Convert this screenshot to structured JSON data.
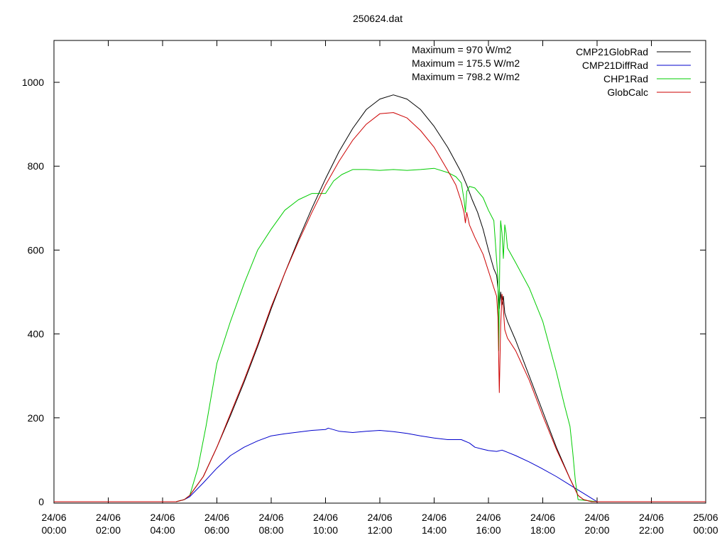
{
  "chart_data": {
    "type": "line",
    "title": "250624.dat",
    "xlabel": "",
    "ylabel": "",
    "xlim": [
      0,
      24
    ],
    "ylim": [
      0,
      1100
    ],
    "grid": false,
    "legend_position": "top-right",
    "x_tick_labels": [
      {
        "value": 0,
        "label": "24/06\n00:00"
      },
      {
        "value": 2,
        "label": "24/06\n02:00"
      },
      {
        "value": 4,
        "label": "24/06\n04:00"
      },
      {
        "value": 6,
        "label": "24/06\n06:00"
      },
      {
        "value": 8,
        "label": "24/06\n08:00"
      },
      {
        "value": 10,
        "label": "24/06\n10:00"
      },
      {
        "value": 12,
        "label": "24/06\n12:00"
      },
      {
        "value": 14,
        "label": "24/06\n14:00"
      },
      {
        "value": 16,
        "label": "24/06\n16:00"
      },
      {
        "value": 18,
        "label": "24/06\n18:00"
      },
      {
        "value": 20,
        "label": "24/06\n20:00"
      },
      {
        "value": 22,
        "label": "24/06\n22:00"
      },
      {
        "value": 24,
        "label": "25/06\n00:00"
      }
    ],
    "y_ticks": [
      0,
      200,
      400,
      600,
      800,
      1000
    ],
    "annotations": [
      "Maximum = 970 W/m2",
      "Maximum = 175.5 W/m2",
      "Maximum = 798.2 W/m2"
    ],
    "series": [
      {
        "name": "CMP21GlobRad",
        "color": "#000000",
        "x": [
          0,
          4.5,
          4.8,
          5.0,
          5.5,
          6.0,
          6.5,
          7.0,
          7.5,
          8.0,
          8.5,
          9.0,
          9.5,
          10.0,
          10.5,
          11.0,
          11.5,
          12.0,
          12.5,
          13.0,
          13.5,
          14.0,
          14.5,
          15.0,
          15.2,
          15.4,
          15.6,
          15.8,
          16.0,
          16.2,
          16.3,
          16.35,
          16.4,
          16.45,
          16.5,
          16.55,
          16.6,
          16.7,
          17.0,
          17.5,
          18.0,
          18.5,
          19.0,
          19.3,
          19.5,
          19.8,
          20.0,
          24
        ],
        "y": [
          0,
          0,
          5,
          15,
          60,
          130,
          205,
          285,
          370,
          460,
          545,
          625,
          700,
          770,
          835,
          890,
          935,
          960,
          970,
          960,
          935,
          895,
          845,
          785,
          755,
          720,
          690,
          650,
          600,
          555,
          540,
          510,
          460,
          500,
          470,
          490,
          450,
          430,
          385,
          300,
          215,
          130,
          55,
          15,
          5,
          0,
          0,
          0
        ]
      },
      {
        "name": "CMP21DiffRad",
        "color": "#0000cc",
        "x": [
          0,
          4.5,
          4.8,
          5.0,
          5.5,
          6.0,
          6.5,
          7.0,
          7.5,
          8.0,
          8.5,
          9.0,
          9.5,
          10.0,
          10.1,
          10.5,
          11.0,
          11.5,
          12.0,
          12.5,
          13.0,
          13.5,
          14.0,
          14.5,
          15.0,
          15.3,
          15.5,
          15.8,
          16.0,
          16.3,
          16.5,
          16.7,
          17.0,
          17.5,
          18.0,
          18.5,
          19.0,
          19.5,
          19.8,
          20.0,
          24
        ],
        "y": [
          0,
          0,
          5,
          12,
          45,
          80,
          110,
          130,
          145,
          157,
          162,
          166,
          170,
          172,
          175.5,
          168,
          165,
          168,
          170,
          167,
          163,
          157,
          152,
          148,
          148,
          140,
          130,
          125,
          122,
          120,
          123,
          118,
          110,
          95,
          78,
          60,
          40,
          20,
          8,
          0,
          0
        ]
      },
      {
        "name": "CHP1Rad",
        "color": "#00cc00",
        "x": [
          0,
          4.5,
          4.8,
          5.0,
          5.3,
          5.6,
          6.0,
          6.5,
          7.0,
          7.5,
          8.0,
          8.5,
          9.0,
          9.5,
          10.0,
          10.3,
          10.6,
          11.0,
          11.5,
          12.0,
          12.5,
          13.0,
          13.5,
          14.0,
          14.5,
          14.8,
          15.0,
          15.1,
          15.15,
          15.2,
          15.25,
          15.3,
          15.5,
          15.8,
          16.0,
          16.2,
          16.35,
          16.38,
          16.42,
          16.45,
          16.5,
          16.55,
          16.6,
          16.65,
          16.7,
          17.0,
          17.5,
          18.0,
          18.5,
          18.8,
          19.0,
          19.1,
          19.2,
          19.3,
          20.0,
          24
        ],
        "y": [
          0,
          0,
          5,
          15,
          80,
          180,
          330,
          430,
          520,
          600,
          650,
          695,
          720,
          735,
          735,
          765,
          780,
          792,
          792,
          790,
          792,
          790,
          792,
          795,
          785,
          775,
          760,
          720,
          690,
          740,
          745,
          752,
          748,
          725,
          695,
          670,
          530,
          360,
          600,
          670,
          640,
          580,
          660,
          640,
          605,
          570,
          510,
          430,
          310,
          230,
          180,
          120,
          50,
          5,
          0,
          0
        ]
      },
      {
        "name": "GlobCalc",
        "color": "#cc0000",
        "x": [
          0,
          4.5,
          4.8,
          5.0,
          5.5,
          6.0,
          6.5,
          7.0,
          7.5,
          8.0,
          8.5,
          9.0,
          9.5,
          10.0,
          10.5,
          11.0,
          11.5,
          12.0,
          12.5,
          13.0,
          13.5,
          14.0,
          14.5,
          14.8,
          15.0,
          15.1,
          15.15,
          15.2,
          15.3,
          15.5,
          15.8,
          16.0,
          16.2,
          16.3,
          16.35,
          16.4,
          16.45,
          16.5,
          16.55,
          16.6,
          16.7,
          17.0,
          17.5,
          18.0,
          18.5,
          19.0,
          19.3,
          19.5,
          19.8,
          20.0,
          24
        ],
        "y": [
          0,
          0,
          5,
          15,
          60,
          130,
          210,
          290,
          375,
          465,
          545,
          620,
          690,
          755,
          812,
          862,
          900,
          925,
          928,
          915,
          885,
          845,
          790,
          755,
          715,
          690,
          665,
          690,
          660,
          630,
          590,
          550,
          510,
          490,
          440,
          260,
          420,
          495,
          460,
          410,
          390,
          360,
          290,
          205,
          125,
          55,
          15,
          5,
          0,
          0,
          0
        ]
      }
    ]
  }
}
